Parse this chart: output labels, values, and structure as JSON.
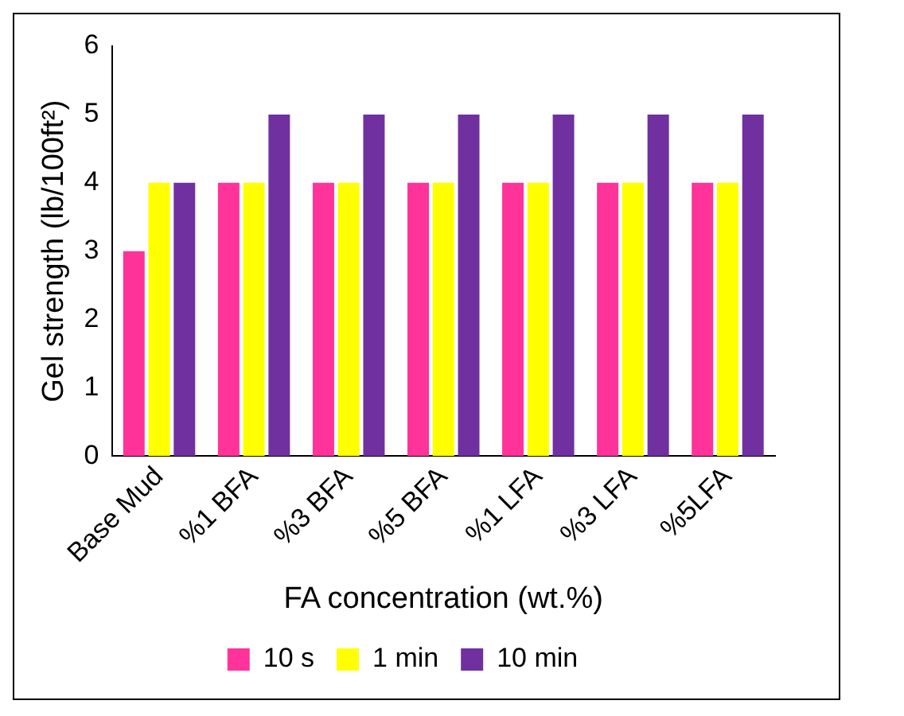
{
  "chart_data": {
    "type": "bar",
    "xlabel": "FA concentration (wt.%)",
    "ylabel": "Gel strength (lb/100ft²)",
    "categories": [
      "Base Mud",
      "%1 BFA",
      "%3 BFA",
      "%5 BFA",
      "%1 LFA",
      "%3 LFA",
      "%5LFA"
    ],
    "series": [
      {
        "name": "10 s",
        "color": "#ff3399",
        "values": [
          3,
          4,
          4,
          4,
          4,
          4,
          4
        ]
      },
      {
        "name": "1 min",
        "color": "#ffff00",
        "values": [
          4,
          4,
          4,
          4,
          4,
          4,
          4
        ]
      },
      {
        "name": "10 min",
        "color": "#7030a0",
        "values": [
          4,
          5,
          5,
          5,
          5,
          5,
          5
        ]
      }
    ],
    "ylim": [
      0,
      6
    ],
    "yticks": [
      0,
      1,
      2,
      3,
      4,
      5,
      6
    ],
    "grid": false,
    "legend": "bottom"
  }
}
